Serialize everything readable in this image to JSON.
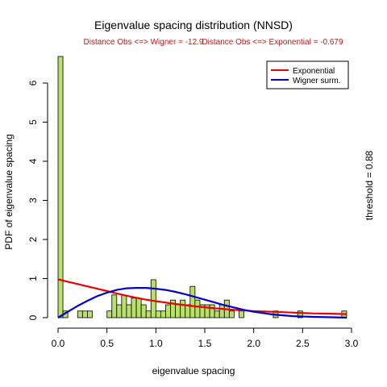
{
  "chart_data": {
    "type": "bar",
    "title": "Eigenvalue spacing distribution (NNSD)",
    "subtitles": [
      "Distance Obs <=> Wigner = -12.9",
      "Distance Obs <=> Exponential = -0.679"
    ],
    "xlabel": "eigenvalue spacing",
    "ylabel": "PDF of eigenvalue spacing",
    "right_annotation": "threshold = 0.88",
    "xlim": [
      0,
      3
    ],
    "ylim": [
      0,
      6.8
    ],
    "x_ticks": [
      "0.0",
      "0.5",
      "1.0",
      "1.5",
      "2.0",
      "2.5",
      "3.0"
    ],
    "y_ticks": [
      "0",
      "1",
      "2",
      "3",
      "4",
      "5",
      "6"
    ],
    "bin_width": 0.05,
    "bins": [
      {
        "x": 0.0,
        "y": 6.68
      },
      {
        "x": 0.05,
        "y": 0.17
      },
      {
        "x": 0.1,
        "y": 0.0
      },
      {
        "x": 0.15,
        "y": 0.0
      },
      {
        "x": 0.2,
        "y": 0.17
      },
      {
        "x": 0.25,
        "y": 0.17
      },
      {
        "x": 0.3,
        "y": 0.17
      },
      {
        "x": 0.35,
        "y": 0.0
      },
      {
        "x": 0.4,
        "y": 0.0
      },
      {
        "x": 0.45,
        "y": 0.0
      },
      {
        "x": 0.5,
        "y": 0.17
      },
      {
        "x": 0.55,
        "y": 0.58
      },
      {
        "x": 0.6,
        "y": 0.33
      },
      {
        "x": 0.65,
        "y": 0.58
      },
      {
        "x": 0.7,
        "y": 0.33
      },
      {
        "x": 0.75,
        "y": 0.5
      },
      {
        "x": 0.8,
        "y": 0.5
      },
      {
        "x": 0.85,
        "y": 0.33
      },
      {
        "x": 0.9,
        "y": 0.17
      },
      {
        "x": 0.95,
        "y": 0.97
      },
      {
        "x": 1.0,
        "y": 0.17
      },
      {
        "x": 1.05,
        "y": 0.17
      },
      {
        "x": 1.1,
        "y": 0.33
      },
      {
        "x": 1.15,
        "y": 0.45
      },
      {
        "x": 1.2,
        "y": 0.33
      },
      {
        "x": 1.25,
        "y": 0.45
      },
      {
        "x": 1.3,
        "y": 0.33
      },
      {
        "x": 1.35,
        "y": 0.8
      },
      {
        "x": 1.4,
        "y": 0.45
      },
      {
        "x": 1.45,
        "y": 0.33
      },
      {
        "x": 1.5,
        "y": 0.33
      },
      {
        "x": 1.55,
        "y": 0.33
      },
      {
        "x": 1.6,
        "y": 0.17
      },
      {
        "x": 1.65,
        "y": 0.33
      },
      {
        "x": 1.7,
        "y": 0.45
      },
      {
        "x": 1.75,
        "y": 0.17
      },
      {
        "x": 1.8,
        "y": 0.0
      },
      {
        "x": 1.85,
        "y": 0.17
      },
      {
        "x": 1.9,
        "y": 0.0
      },
      {
        "x": 1.95,
        "y": 0.0
      },
      {
        "x": 2.0,
        "y": 0.0
      },
      {
        "x": 2.05,
        "y": 0.0
      },
      {
        "x": 2.1,
        "y": 0.0
      },
      {
        "x": 2.15,
        "y": 0.0
      },
      {
        "x": 2.2,
        "y": 0.17
      },
      {
        "x": 2.25,
        "y": 0.0
      },
      {
        "x": 2.3,
        "y": 0.0
      },
      {
        "x": 2.35,
        "y": 0.0
      },
      {
        "x": 2.4,
        "y": 0.0
      },
      {
        "x": 2.45,
        "y": 0.17
      },
      {
        "x": 2.5,
        "y": 0.0
      },
      {
        "x": 2.55,
        "y": 0.0
      },
      {
        "x": 2.6,
        "y": 0.0
      },
      {
        "x": 2.65,
        "y": 0.0
      },
      {
        "x": 2.7,
        "y": 0.0
      },
      {
        "x": 2.75,
        "y": 0.0
      },
      {
        "x": 2.8,
        "y": 0.0
      },
      {
        "x": 2.85,
        "y": 0.0
      },
      {
        "x": 2.9,
        "y": 0.17
      }
    ],
    "series": [
      {
        "name": "Exponential",
        "color": "#ee0000",
        "x": [
          0,
          0.1,
          0.2,
          0.3,
          0.4,
          0.5,
          0.6,
          0.7,
          0.8,
          0.9,
          1.0,
          1.2,
          1.4,
          1.6,
          1.8,
          2.0,
          2.2,
          2.4,
          2.6,
          2.8,
          2.95
        ],
        "y": [
          0.98,
          0.92,
          0.86,
          0.8,
          0.74,
          0.68,
          0.62,
          0.56,
          0.51,
          0.46,
          0.42,
          0.35,
          0.29,
          0.24,
          0.2,
          0.17,
          0.15,
          0.13,
          0.11,
          0.1,
          0.09
        ]
      },
      {
        "name": "Wigner surm.",
        "color": "#0000cc",
        "x": [
          0,
          0.1,
          0.2,
          0.3,
          0.4,
          0.5,
          0.6,
          0.7,
          0.8,
          0.9,
          1.0,
          1.1,
          1.2,
          1.3,
          1.4,
          1.5,
          1.6,
          1.7,
          1.8,
          1.9,
          2.0,
          2.2,
          2.4,
          2.6,
          2.8,
          2.95
        ],
        "y": [
          0,
          0.15,
          0.3,
          0.43,
          0.55,
          0.64,
          0.71,
          0.75,
          0.76,
          0.76,
          0.74,
          0.71,
          0.66,
          0.6,
          0.53,
          0.46,
          0.39,
          0.32,
          0.26,
          0.2,
          0.15,
          0.08,
          0.04,
          0.02,
          0.01,
          0.0
        ]
      }
    ],
    "legend_position": "top-right",
    "bar_color": "#b8e06a"
  }
}
